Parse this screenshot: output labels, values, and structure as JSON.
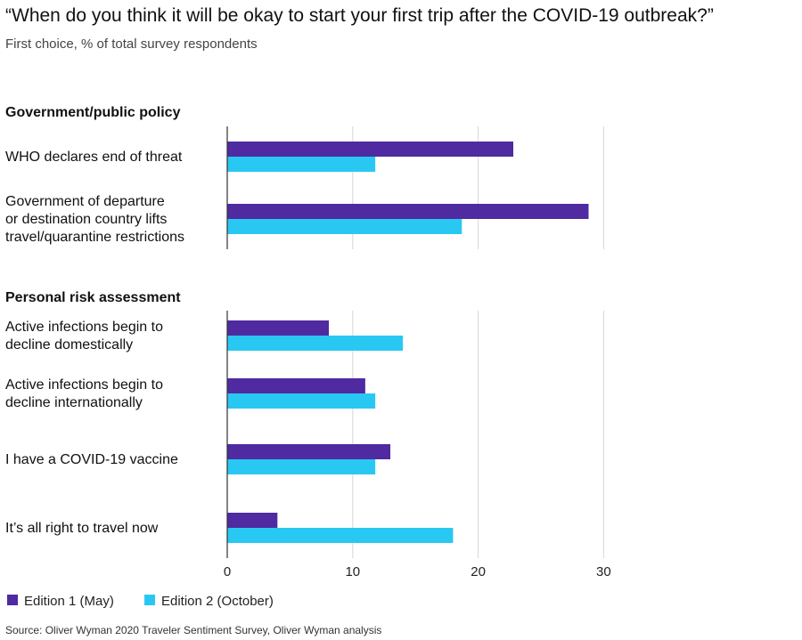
{
  "chart_data": {
    "type": "bar",
    "orientation": "horizontal",
    "title": "“When do you think it will be okay to start your first trip after the COVID-19 outbreak?”",
    "subtitle": "First choice, % of total survey respondents",
    "xlim": [
      0,
      30
    ],
    "xticks": [
      0,
      10,
      20,
      30
    ],
    "grid": true,
    "legend_position": "bottom-left",
    "series": [
      {
        "name": "Edition 1 (May)",
        "color": "#4f2aa0"
      },
      {
        "name": "Edition 2 (October)",
        "color": "#29c8f2"
      }
    ],
    "groups": [
      {
        "label": "Government/public policy",
        "categories": [
          {
            "lines": [
              "WHO declares end of threat"
            ],
            "values": [
              22.8,
              11.8
            ]
          },
          {
            "lines": [
              "Government of departure",
              "or destination country lifts",
              "travel/quarantine restrictions"
            ],
            "values": [
              28.8,
              18.7
            ]
          }
        ]
      },
      {
        "label": "Personal risk assessment",
        "categories": [
          {
            "lines": [
              "Active infections begin to",
              "decline domestically"
            ],
            "values": [
              8.1,
              14.0
            ]
          },
          {
            "lines": [
              "Active infections begin to",
              "decline internationally"
            ],
            "values": [
              11.0,
              11.8
            ]
          },
          {
            "lines": [
              "I have a COVID-19 vaccine"
            ],
            "values": [
              13.0,
              11.8
            ]
          },
          {
            "lines": [
              "It’s all right to travel now"
            ],
            "values": [
              4.0,
              18.0
            ]
          }
        ]
      }
    ],
    "source": "Source: Oliver Wyman 2020 Traveler Sentiment Survey, Oliver Wyman analysis"
  }
}
